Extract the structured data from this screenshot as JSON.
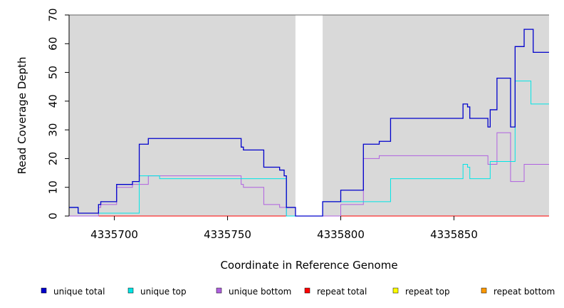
{
  "chart_data": {
    "type": "line",
    "step": true,
    "xlabel": "Coordinate in Reference Genome",
    "ylabel": "Read Coverage Depth",
    "xlim": [
      4335680,
      4335892
    ],
    "ylim": [
      0,
      70
    ],
    "x_ticks": [
      4335700,
      4335750,
      4335800,
      4335850
    ],
    "y_ticks": [
      0,
      10,
      20,
      30,
      40,
      50,
      60,
      70
    ],
    "grid": false,
    "legend_position": "bottom",
    "background_color": "#d9d9d9",
    "gap_color": "#ffffff",
    "gaps": [
      [
        4335780,
        4335792
      ]
    ],
    "series": [
      {
        "name": "unique total",
        "color": "#0000cc",
        "points": [
          [
            4335680,
            3
          ],
          [
            4335684,
            1
          ],
          [
            4335693,
            4
          ],
          [
            4335694,
            5
          ],
          [
            4335701,
            11
          ],
          [
            4335708,
            12
          ],
          [
            4335711,
            25
          ],
          [
            4335715,
            27
          ],
          [
            4335756,
            24
          ],
          [
            4335757,
            23
          ],
          [
            4335766,
            17
          ],
          [
            4335773,
            16
          ],
          [
            4335775,
            14
          ],
          [
            4335776,
            3
          ],
          [
            4335780,
            0
          ],
          [
            4335792,
            5
          ],
          [
            4335800,
            9
          ],
          [
            4335810,
            25
          ],
          [
            4335817,
            26
          ],
          [
            4335822,
            34
          ],
          [
            4335854,
            39
          ],
          [
            4335856,
            38
          ],
          [
            4335857,
            34
          ],
          [
            4335865,
            31
          ],
          [
            4335866,
            37
          ],
          [
            4335869,
            48
          ],
          [
            4335875,
            31
          ],
          [
            4335877,
            59
          ],
          [
            4335881,
            65
          ],
          [
            4335885,
            57
          ],
          [
            4335892,
            57
          ]
        ]
      },
      {
        "name": "unique top",
        "color": "#00e5e5",
        "points": [
          [
            4335680,
            3
          ],
          [
            4335684,
            1
          ],
          [
            4335693,
            1
          ],
          [
            4335711,
            14
          ],
          [
            4335720,
            13
          ],
          [
            4335775,
            13
          ],
          [
            4335776,
            0
          ],
          [
            4335780,
            0
          ],
          [
            4335792,
            5
          ],
          [
            4335822,
            13
          ],
          [
            4335854,
            18
          ],
          [
            4335856,
            17
          ],
          [
            4335857,
            13
          ],
          [
            4335866,
            19
          ],
          [
            4335877,
            47
          ],
          [
            4335884,
            39
          ],
          [
            4335892,
            39
          ]
        ]
      },
      {
        "name": "unique bottom",
        "color": "#b060e0",
        "points": [
          [
            4335680,
            0
          ],
          [
            4335693,
            3
          ],
          [
            4335694,
            4
          ],
          [
            4335701,
            10
          ],
          [
            4335708,
            11
          ],
          [
            4335715,
            14
          ],
          [
            4335756,
            11
          ],
          [
            4335757,
            10
          ],
          [
            4335766,
            4
          ],
          [
            4335773,
            3
          ],
          [
            4335776,
            0
          ],
          [
            4335800,
            4
          ],
          [
            4335810,
            20
          ],
          [
            4335817,
            21
          ],
          [
            4335865,
            18
          ],
          [
            4335869,
            29
          ],
          [
            4335875,
            12
          ],
          [
            4335881,
            18
          ],
          [
            4335892,
            18
          ]
        ]
      },
      {
        "name": "repeat total",
        "color": "#ff0000",
        "points": [
          [
            4335680,
            0
          ],
          [
            4335892,
            0
          ]
        ]
      },
      {
        "name": "repeat top",
        "color": "#ffff00",
        "points": [
          [
            4335680,
            0
          ],
          [
            4335892,
            0
          ]
        ]
      },
      {
        "name": "repeat bottom",
        "color": "#ff9900",
        "points": [
          [
            4335680,
            0
          ],
          [
            4335892,
            0
          ]
        ]
      }
    ]
  }
}
